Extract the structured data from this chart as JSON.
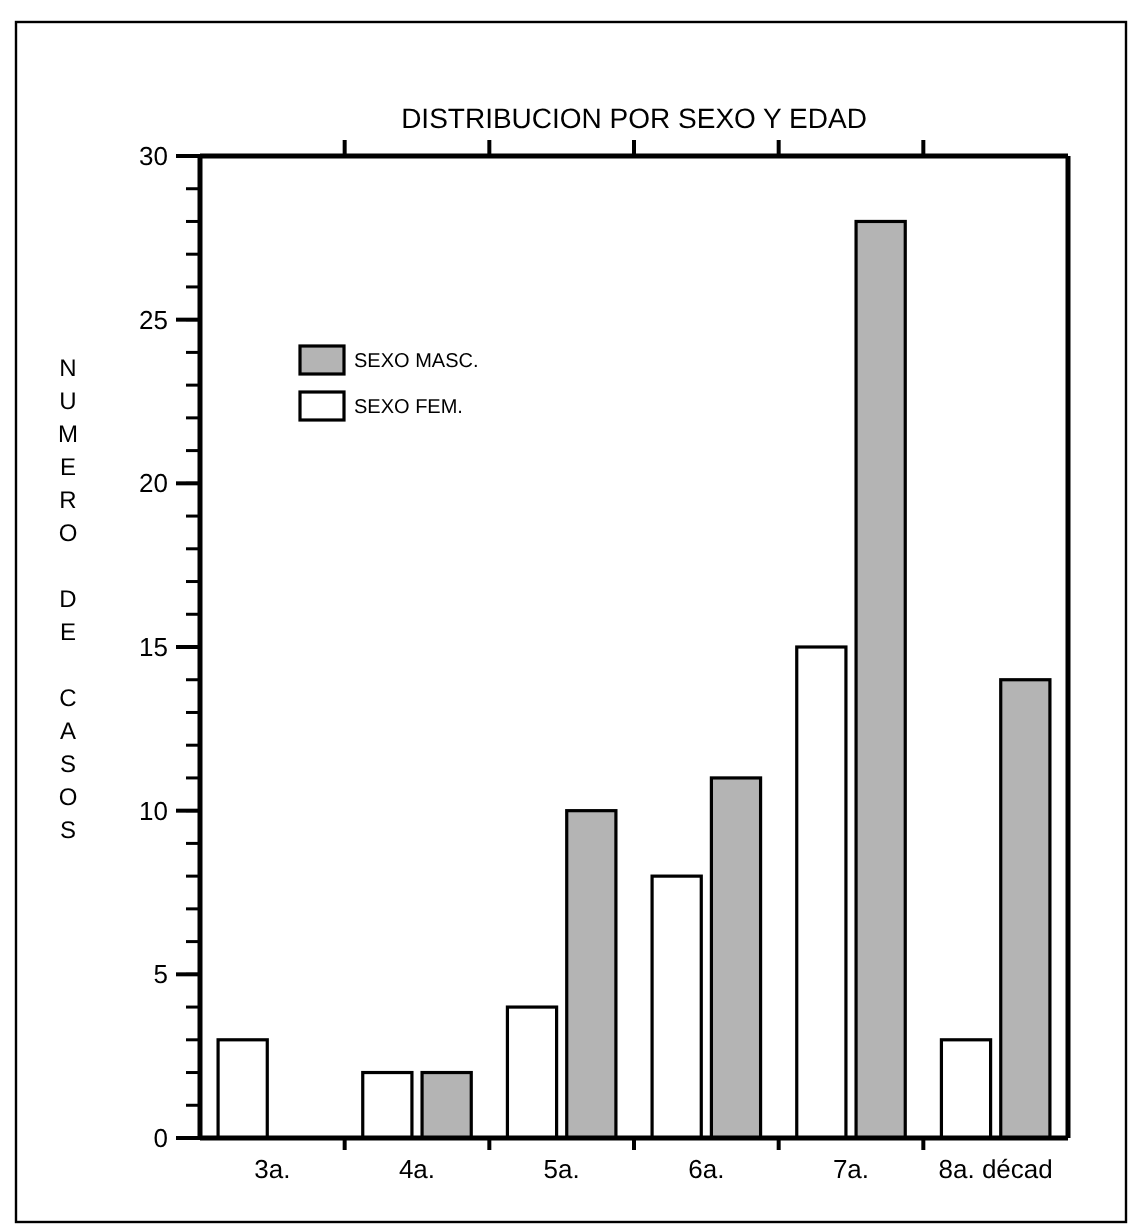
{
  "chart_data": {
    "type": "bar",
    "title": "DISTRIBUCION POR SEXO Y EDAD",
    "ylabel": "NUMERO DE CASOS",
    "categories": [
      "3a.",
      "4a.",
      "5a.",
      "6a.",
      "7a.",
      "8a. décad"
    ],
    "series": [
      {
        "name": "SEXO FEM.",
        "color": "#ffffff",
        "values": [
          3,
          2,
          4,
          8,
          15,
          3
        ]
      },
      {
        "name": "SEXO MASC.",
        "color": "#b4b4b4",
        "values": [
          0,
          2,
          10,
          11,
          28,
          14
        ]
      }
    ],
    "ylim": [
      0,
      30
    ],
    "yticks": [
      0,
      5,
      10,
      15,
      20,
      25,
      30
    ],
    "legend": "top left",
    "grid": false
  }
}
